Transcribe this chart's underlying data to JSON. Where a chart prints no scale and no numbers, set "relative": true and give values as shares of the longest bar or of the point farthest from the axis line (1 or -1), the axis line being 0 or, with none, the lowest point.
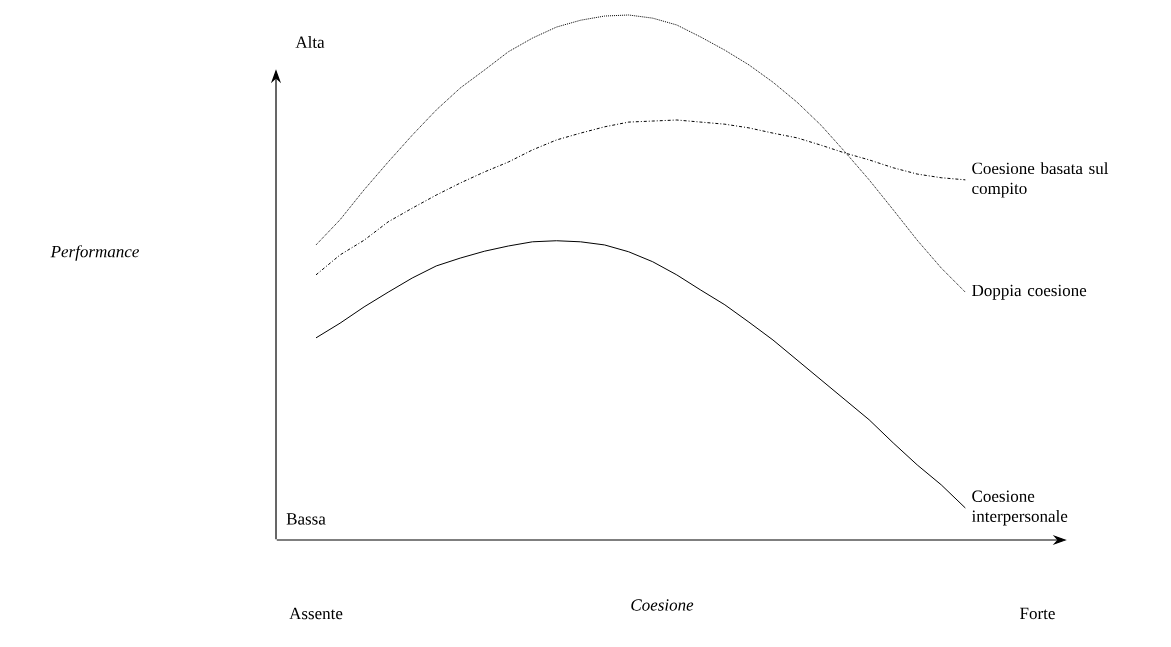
{
  "chart_data": {
    "type": "line",
    "relative": true,
    "xlabel": "Coesione",
    "categories": [
      "Assente",
      null,
      null,
      null,
      null,
      null,
      null,
      null,
      null,
      null,
      null,
      null,
      null,
      null,
      null,
      null,
      null,
      null,
      null,
      null,
      null,
      null,
      null,
      null,
      null,
      null,
      null,
      null,
      null,
      null,
      "Forte"
    ],
    "annotations": [
      "Alta",
      "Bassa",
      "Performance"
    ],
    "series": [
      {
        "name": "Coesione basata sul compito",
        "color": "#000000",
        "line_style": "dashdot",
        "values": [
          0.505,
          0.543,
          0.571,
          0.606,
          0.632,
          0.657,
          0.68,
          0.701,
          0.72,
          0.743,
          0.762,
          0.775,
          0.787,
          0.796,
          0.798,
          0.8,
          0.796,
          0.792,
          0.785,
          0.775,
          0.766,
          0.752,
          0.737,
          0.724,
          0.709,
          0.697,
          0.69,
          0.686,
          null,
          null,
          null
        ]
      },
      {
        "name": "Doppia coesione",
        "color": "#000000",
        "line_style": "dotted",
        "values": [
          0.562,
          0.61,
          0.667,
          0.72,
          0.771,
          0.819,
          0.861,
          0.895,
          0.93,
          0.956,
          0.977,
          0.99,
          0.998,
          1.0,
          0.994,
          0.981,
          0.958,
          0.933,
          0.905,
          0.872,
          0.834,
          0.79,
          0.739,
          0.686,
          0.629,
          0.571,
          0.518,
          0.472,
          null,
          null,
          null
        ]
      },
      {
        "name": "Coesione interpersonale",
        "color": "#000000",
        "line_style": "solid",
        "values": [
          0.385,
          0.413,
          0.444,
          0.472,
          0.499,
          0.522,
          0.537,
          0.55,
          0.56,
          0.568,
          0.57,
          0.568,
          0.562,
          0.549,
          0.53,
          0.505,
          0.476,
          0.448,
          0.415,
          0.381,
          0.343,
          0.305,
          0.267,
          0.229,
          0.185,
          0.143,
          0.105,
          0.061,
          null,
          null,
          null
        ]
      }
    ]
  }
}
